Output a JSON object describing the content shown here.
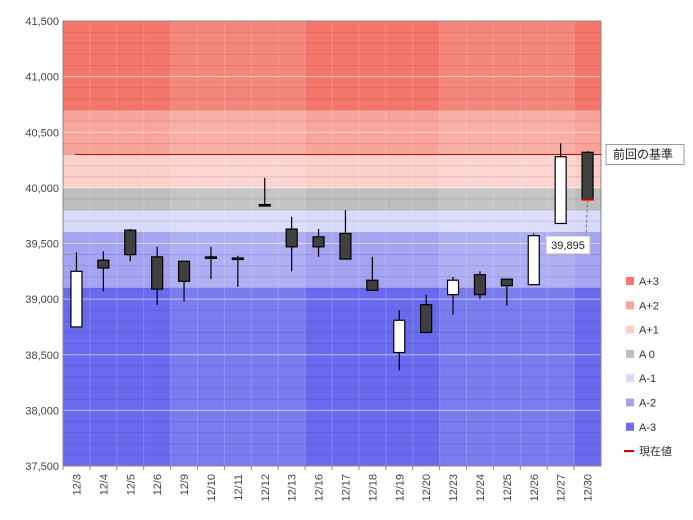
{
  "chart_data": {
    "type": "candlestick",
    "ylim": [
      37500,
      41500
    ],
    "y_ticks": [
      37500,
      38000,
      38500,
      39000,
      39500,
      40000,
      40500,
      41000,
      41500
    ],
    "y_tick_labels": [
      "37,500",
      "38,000",
      "38,500",
      "39,000",
      "39,500",
      "40,000",
      "40,500",
      "41,000",
      "41,500"
    ],
    "categories": [
      "12/3",
      "12/4",
      "12/5",
      "12/6",
      "12/9",
      "12/10",
      "12/11",
      "12/12",
      "12/13",
      "12/16",
      "12/17",
      "12/18",
      "12/19",
      "12/20",
      "12/23",
      "12/24",
      "12/25",
      "12/26",
      "12/27",
      "12/30"
    ],
    "candles": [
      {
        "open": 38750,
        "high": 39420,
        "low": 38750,
        "close": 39250
      },
      {
        "open": 39350,
        "high": 39430,
        "low": 39070,
        "close": 39280
      },
      {
        "open": 39620,
        "high": 39630,
        "low": 39340,
        "close": 39400
      },
      {
        "open": 39380,
        "high": 39470,
        "low": 38950,
        "close": 39090
      },
      {
        "open": 39340,
        "high": 39340,
        "low": 38980,
        "close": 39160
      },
      {
        "open": 39380,
        "high": 39470,
        "low": 39180,
        "close": 39370
      },
      {
        "open": 39370,
        "high": 39390,
        "low": 39110,
        "close": 39360
      },
      {
        "open": 39850,
        "high": 40090,
        "low": 39850,
        "close": 39840
      },
      {
        "open": 39630,
        "high": 39740,
        "low": 39250,
        "close": 39470
      },
      {
        "open": 39560,
        "high": 39630,
        "low": 39380,
        "close": 39470
      },
      {
        "open": 39590,
        "high": 39800,
        "low": 39360,
        "close": 39360
      },
      {
        "open": 39170,
        "high": 39380,
        "low": 39080,
        "close": 39080
      },
      {
        "open": 38520,
        "high": 38900,
        "low": 38360,
        "close": 38810
      },
      {
        "open": 38950,
        "high": 39040,
        "low": 38700,
        "close": 38700
      },
      {
        "open": 39040,
        "high": 39200,
        "low": 38860,
        "close": 39170
      },
      {
        "open": 39220,
        "high": 39250,
        "low": 39000,
        "close": 39040
      },
      {
        "open": 39180,
        "high": 39180,
        "low": 38940,
        "close": 39120
      },
      {
        "open": 39130,
        "high": 39590,
        "low": 39130,
        "close": 39570
      },
      {
        "open": 39680,
        "high": 40400,
        "low": 39680,
        "close": 40280
      },
      {
        "open": 40320,
        "high": 40330,
        "low": 39880,
        "close": 39895
      }
    ],
    "bands": [
      {
        "name": "A+3",
        "from": 40700,
        "to": 41500,
        "color": "#f4766a"
      },
      {
        "name": "A+2",
        "from": 40300,
        "to": 40700,
        "color": "#f9a49a"
      },
      {
        "name": "A+1",
        "from": 40000,
        "to": 40300,
        "color": "#fcd0ca"
      },
      {
        "name": "A 0",
        "from": 39800,
        "to": 40000,
        "color": "#bdbdbd"
      },
      {
        "name": "A-1",
        "from": 39600,
        "to": 39800,
        "color": "#d9d9fb"
      },
      {
        "name": "A-2",
        "from": 39100,
        "to": 39600,
        "color": "#a4a4f3"
      },
      {
        "name": "A-3",
        "from": 37500,
        "to": 39100,
        "color": "#6a6aef"
      }
    ],
    "previous_reference": 40300,
    "current_value": 39895,
    "legend": [
      {
        "label": "A+3",
        "color": "#f4766a"
      },
      {
        "label": "A+2",
        "color": "#f9a49a"
      },
      {
        "label": "A+1",
        "color": "#fcd0ca"
      },
      {
        "label": "A 0",
        "color": "#bdbdbd"
      },
      {
        "label": "A-1",
        "color": "#d9d9fb"
      },
      {
        "label": "A-2",
        "color": "#a4a4f3"
      },
      {
        "label": "A-3",
        "color": "#6a6aef"
      },
      {
        "label": "現在値",
        "color": "#c00000",
        "kind": "line"
      }
    ],
    "annotations": {
      "reference_label": "前回の基準",
      "current_label": "39,895"
    },
    "grid": true,
    "legend_position": "right"
  }
}
